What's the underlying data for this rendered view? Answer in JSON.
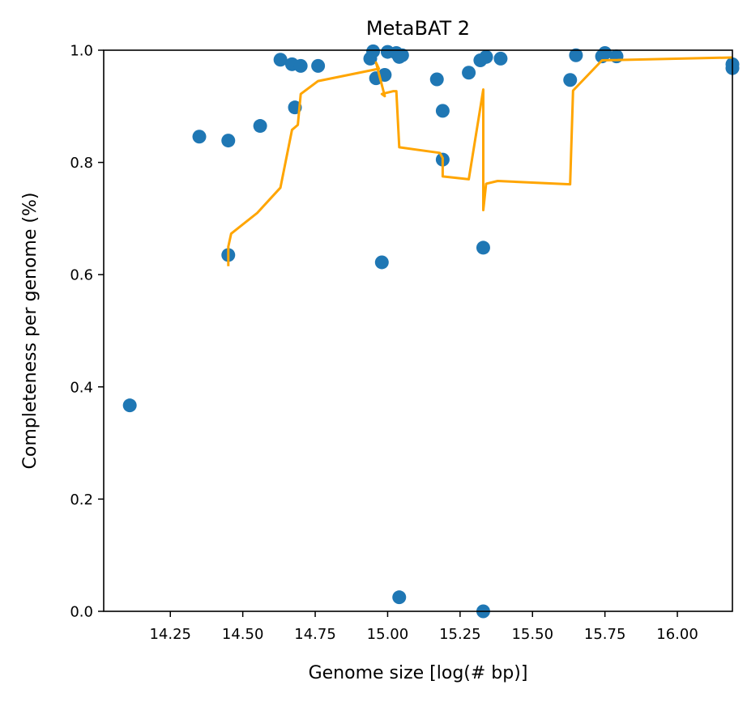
{
  "chart_data": {
    "type": "scatter",
    "title": "MetaBAT 2",
    "xlabel": "Genome size [log(# bp)]",
    "ylabel": "Completeness per genome (%)",
    "xlim": [
      14.02,
      16.19
    ],
    "ylim": [
      0.0,
      1.0
    ],
    "xticks": [
      {
        "value": 14.25,
        "label": "14.25"
      },
      {
        "value": 14.5,
        "label": "14.50"
      },
      {
        "value": 14.75,
        "label": "14.75"
      },
      {
        "value": 15.0,
        "label": "15.00"
      },
      {
        "value": 15.25,
        "label": "15.25"
      },
      {
        "value": 15.5,
        "label": "15.50"
      },
      {
        "value": 15.75,
        "label": "15.75"
      },
      {
        "value": 16.0,
        "label": "16.00"
      }
    ],
    "yticks": [
      {
        "value": 0.0,
        "label": "0.0"
      },
      {
        "value": 0.2,
        "label": "0.2"
      },
      {
        "value": 0.4,
        "label": "0.4"
      },
      {
        "value": 0.6,
        "label": "0.6"
      },
      {
        "value": 0.8,
        "label": "0.8"
      },
      {
        "value": 1.0,
        "label": "1.0"
      }
    ],
    "grid": false,
    "series": [
      {
        "type": "scatter",
        "color": "#1f77b4",
        "points": [
          {
            "x": 14.11,
            "y": 0.367
          },
          {
            "x": 14.35,
            "y": 0.846
          },
          {
            "x": 14.45,
            "y": 0.839
          },
          {
            "x": 14.45,
            "y": 0.635
          },
          {
            "x": 14.56,
            "y": 0.865
          },
          {
            "x": 14.63,
            "y": 0.983
          },
          {
            "x": 14.67,
            "y": 0.975
          },
          {
            "x": 14.68,
            "y": 0.898
          },
          {
            "x": 14.7,
            "y": 0.972
          },
          {
            "x": 14.76,
            "y": 0.972
          },
          {
            "x": 14.94,
            "y": 0.985
          },
          {
            "x": 14.95,
            "y": 0.998
          },
          {
            "x": 14.96,
            "y": 0.95
          },
          {
            "x": 14.98,
            "y": 0.622
          },
          {
            "x": 14.99,
            "y": 0.956
          },
          {
            "x": 15.0,
            "y": 0.997
          },
          {
            "x": 15.03,
            "y": 0.995
          },
          {
            "x": 15.04,
            "y": 0.988
          },
          {
            "x": 15.05,
            "y": 0.991
          },
          {
            "x": 15.04,
            "y": 0.025
          },
          {
            "x": 15.17,
            "y": 0.948
          },
          {
            "x": 15.19,
            "y": 0.892
          },
          {
            "x": 15.19,
            "y": 0.805
          },
          {
            "x": 15.28,
            "y": 0.96
          },
          {
            "x": 15.32,
            "y": 0.982
          },
          {
            "x": 15.34,
            "y": 0.988
          },
          {
            "x": 15.33,
            "y": 0.648
          },
          {
            "x": 15.33,
            "y": 0.0
          },
          {
            "x": 15.39,
            "y": 0.985
          },
          {
            "x": 15.63,
            "y": 0.947
          },
          {
            "x": 15.65,
            "y": 0.991
          },
          {
            "x": 15.74,
            "y": 0.989
          },
          {
            "x": 15.75,
            "y": 0.995
          },
          {
            "x": 15.79,
            "y": 0.989
          },
          {
            "x": 16.19,
            "y": 0.975
          },
          {
            "x": 16.19,
            "y": 0.968
          }
        ]
      },
      {
        "type": "line",
        "color": "#ffa500",
        "points": [
          {
            "x": 14.45,
            "y": 0.615
          },
          {
            "x": 14.45,
            "y": 0.65
          },
          {
            "x": 14.46,
            "y": 0.673
          },
          {
            "x": 14.55,
            "y": 0.71
          },
          {
            "x": 14.63,
            "y": 0.755
          },
          {
            "x": 14.67,
            "y": 0.858
          },
          {
            "x": 14.69,
            "y": 0.867
          },
          {
            "x": 14.7,
            "y": 0.922
          },
          {
            "x": 14.76,
            "y": 0.945
          },
          {
            "x": 14.97,
            "y": 0.967
          },
          {
            "x": 14.96,
            "y": 0.978
          },
          {
            "x": 14.99,
            "y": 0.918
          },
          {
            "x": 14.98,
            "y": 0.922
          },
          {
            "x": 15.02,
            "y": 0.927
          },
          {
            "x": 15.03,
            "y": 0.927
          },
          {
            "x": 15.04,
            "y": 0.827
          },
          {
            "x": 15.18,
            "y": 0.817
          },
          {
            "x": 15.19,
            "y": 0.808
          },
          {
            "x": 15.19,
            "y": 0.775
          },
          {
            "x": 15.28,
            "y": 0.77
          },
          {
            "x": 15.33,
            "y": 0.93
          },
          {
            "x": 15.33,
            "y": 0.715
          },
          {
            "x": 15.34,
            "y": 0.762
          },
          {
            "x": 15.38,
            "y": 0.767
          },
          {
            "x": 15.63,
            "y": 0.761
          },
          {
            "x": 15.64,
            "y": 0.928
          },
          {
            "x": 15.74,
            "y": 0.982
          },
          {
            "x": 16.19,
            "y": 0.987
          }
        ]
      }
    ]
  }
}
